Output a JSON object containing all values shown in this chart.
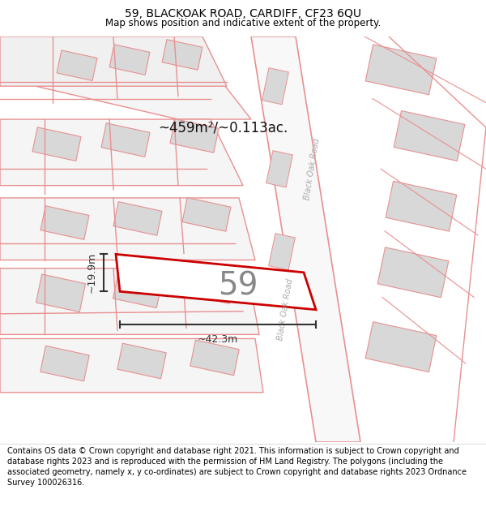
{
  "title": "59, BLACKOAK ROAD, CARDIFF, CF23 6QU",
  "subtitle": "Map shows position and indicative extent of the property.",
  "footer": "Contains OS data © Crown copyright and database right 2021. This information is subject to Crown copyright and database rights 2023 and is reproduced with the permission of HM Land Registry. The polygons (including the associated geometry, namely x, y co-ordinates) are subject to Crown copyright and database rights 2023 Ordnance Survey 100026316.",
  "area_text": "~459m²/~0.113ac.",
  "width_text": "~42.3m",
  "height_text": "~19.9m",
  "property_label": "59",
  "road_label": "Black Oak Road",
  "title_fontsize": 10,
  "subtitle_fontsize": 8.5,
  "footer_fontsize": 7,
  "map_bg": "#ffffff",
  "block_fc": "#d8d8d8",
  "block_ec": "#e89090",
  "road_ec": "#e89090",
  "road_fc": "#f5f5f5",
  "highlight_ec": "#cc0000",
  "highlight_fc": "#ffffff",
  "dim_color": "#333333",
  "label_color": "#777777",
  "area_color": "#111111",
  "road_label_color": "#aaaaaa"
}
